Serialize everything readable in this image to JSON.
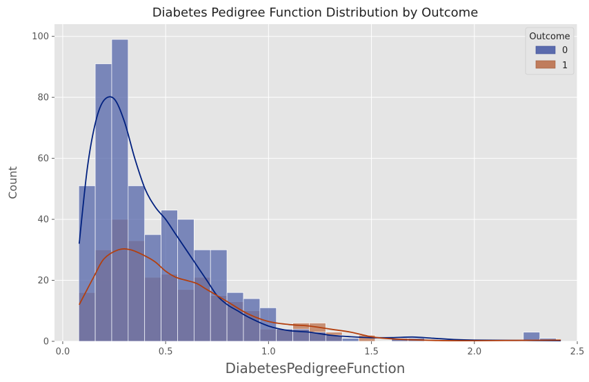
{
  "chart_data": {
    "type": "histogram",
    "title": "Diabetes Pedigree Function Distribution by Outcome",
    "xlabel": "DiabetesPedigreeFunction",
    "ylabel": "Count",
    "xlim": [
      -0.04,
      2.5
    ],
    "ylim": [
      0,
      104
    ],
    "xticks": [
      0.0,
      0.5,
      1.0,
      1.5,
      2.0,
      2.5
    ],
    "xtick_labels": [
      "0.0",
      "0.5",
      "1.0",
      "1.5",
      "2.0",
      "2.5"
    ],
    "yticks": [
      0,
      20,
      40,
      60,
      80,
      100
    ],
    "ytick_labels": [
      "0",
      "20",
      "40",
      "60",
      "80",
      "100"
    ],
    "grid": true,
    "legend": {
      "title": "Outcome",
      "placement": "top-right"
    },
    "bin_start": 0.078,
    "bin_width": 0.08,
    "series": [
      {
        "name": "0",
        "color": "#00207f",
        "bar_color": "#5b6bad",
        "counts": [
          51,
          91,
          99,
          51,
          35,
          43,
          40,
          30,
          30,
          16,
          14,
          11,
          4,
          4,
          3,
          2,
          1,
          0,
          0,
          1,
          1,
          0,
          0,
          0,
          0,
          0,
          0,
          3,
          1,
          0,
          0,
          0,
          0,
          0,
          0,
          0,
          0,
          0,
          0,
          0,
          0,
          0,
          0,
          0,
          0,
          0,
          0,
          0,
          0,
          0,
          0,
          0,
          0,
          0
        ],
        "kde": [
          [
            0.08,
            32
          ],
          [
            0.12,
            57
          ],
          [
            0.16,
            72
          ],
          [
            0.2,
            79
          ],
          [
            0.25,
            79.5
          ],
          [
            0.3,
            72
          ],
          [
            0.35,
            60
          ],
          [
            0.4,
            50
          ],
          [
            0.45,
            44
          ],
          [
            0.5,
            40
          ],
          [
            0.55,
            35
          ],
          [
            0.6,
            30
          ],
          [
            0.65,
            25
          ],
          [
            0.7,
            20
          ],
          [
            0.75,
            15
          ],
          [
            0.8,
            12
          ],
          [
            0.85,
            10
          ],
          [
            0.9,
            8
          ],
          [
            1.0,
            5
          ],
          [
            1.1,
            3.5
          ],
          [
            1.2,
            3
          ],
          [
            1.3,
            2
          ],
          [
            1.4,
            1.5
          ],
          [
            1.5,
            1.2
          ],
          [
            1.6,
            1.2
          ],
          [
            1.7,
            1.4
          ],
          [
            1.8,
            1
          ],
          [
            1.9,
            0.6
          ],
          [
            2.0,
            0.4
          ],
          [
            2.2,
            0.3
          ],
          [
            2.42,
            0.2
          ]
        ]
      },
      {
        "name": "1",
        "color": "#b33f0e",
        "bar_color": "#c07c5c",
        "counts": [
          16,
          30,
          40,
          33,
          21,
          22,
          17,
          21,
          15,
          13,
          10,
          4,
          4,
          6,
          6,
          3,
          0,
          2,
          0,
          1,
          1,
          0,
          0,
          0,
          0,
          0,
          0,
          0,
          0,
          0,
          0,
          0,
          0,
          0,
          0,
          0,
          0,
          0,
          0,
          0,
          0,
          0,
          0,
          0,
          0,
          0,
          0,
          0,
          0,
          0,
          0,
          0,
          0,
          0
        ],
        "kde": [
          [
            0.08,
            12
          ],
          [
            0.15,
            21
          ],
          [
            0.2,
            27
          ],
          [
            0.27,
            30
          ],
          [
            0.33,
            30
          ],
          [
            0.4,
            28
          ],
          [
            0.45,
            26
          ],
          [
            0.5,
            23
          ],
          [
            0.55,
            21
          ],
          [
            0.6,
            20
          ],
          [
            0.65,
            19
          ],
          [
            0.7,
            17
          ],
          [
            0.75,
            15
          ],
          [
            0.8,
            13
          ],
          [
            0.9,
            9
          ],
          [
            1.0,
            6.5
          ],
          [
            1.1,
            5.5
          ],
          [
            1.2,
            5
          ],
          [
            1.3,
            4
          ],
          [
            1.4,
            3
          ],
          [
            1.5,
            1.5
          ],
          [
            1.6,
            0.8
          ],
          [
            1.8,
            0.3
          ],
          [
            2.0,
            0.2
          ],
          [
            2.2,
            0.3
          ],
          [
            2.42,
            0.4
          ]
        ]
      }
    ]
  }
}
